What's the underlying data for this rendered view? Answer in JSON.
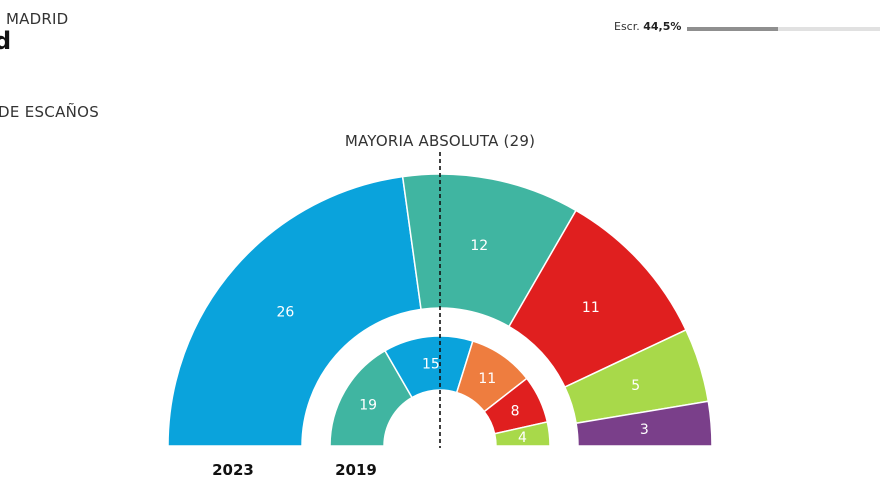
{
  "header": {
    "crumb": "MADRID",
    "title": "d",
    "subtitle": "DE ESCAÑOS"
  },
  "progress": {
    "label": "Escr.",
    "value_text": "44,5%",
    "value": 0.445
  },
  "chart_data": {
    "type": "pie",
    "subtype": "parliament-hemicycle",
    "majority_label": "MAYORIA ABSOLUTA (29)",
    "majority": 29,
    "series": [
      {
        "name": "2023",
        "total": 57,
        "slices": [
          {
            "value": 26,
            "color": "#0aa3dc"
          },
          {
            "value": 12,
            "color": "#40b5a1"
          },
          {
            "value": 11,
            "color": "#e01f1f"
          },
          {
            "value": 5,
            "color": "#a8d94a"
          },
          {
            "value": 3,
            "color": "#7a3f8a"
          }
        ]
      },
      {
        "name": "2019",
        "total": 57,
        "slices": [
          {
            "value": 19,
            "color": "#40b5a1"
          },
          {
            "value": 15,
            "color": "#0aa3dc"
          },
          {
            "value": 11,
            "color": "#ee7d3f"
          },
          {
            "value": 8,
            "color": "#e01f1f"
          },
          {
            "value": 4,
            "color": "#a8d94a"
          }
        ]
      }
    ]
  }
}
